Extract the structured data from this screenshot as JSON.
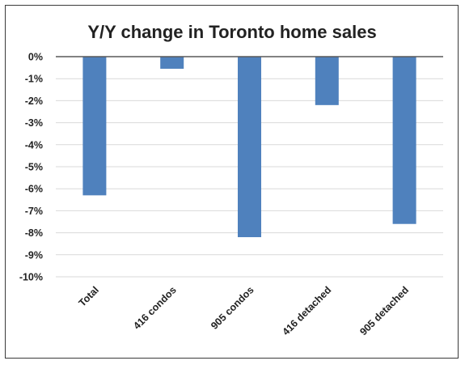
{
  "chart_data": {
    "type": "bar",
    "title": "Y/Y change in Toronto home sales",
    "xlabel": "",
    "ylabel": "",
    "categories": [
      "Total",
      "416 condos",
      "905 condos",
      "416 detached",
      "905 detached"
    ],
    "values": [
      -6.3,
      -0.55,
      -8.2,
      -2.2,
      -7.6
    ],
    "ylim": [
      -10,
      0
    ],
    "yticks": [
      0,
      -1,
      -2,
      -3,
      -4,
      -5,
      -6,
      -7,
      -8,
      -9,
      -10
    ],
    "ytick_labels": [
      "0%",
      "-1%",
      "-2%",
      "-3%",
      "-4%",
      "-5%",
      "-6%",
      "-7%",
      "-8%",
      "-9%",
      "-10%"
    ],
    "grid": true,
    "legend": "none",
    "bar_color": "#4f81bd"
  }
}
